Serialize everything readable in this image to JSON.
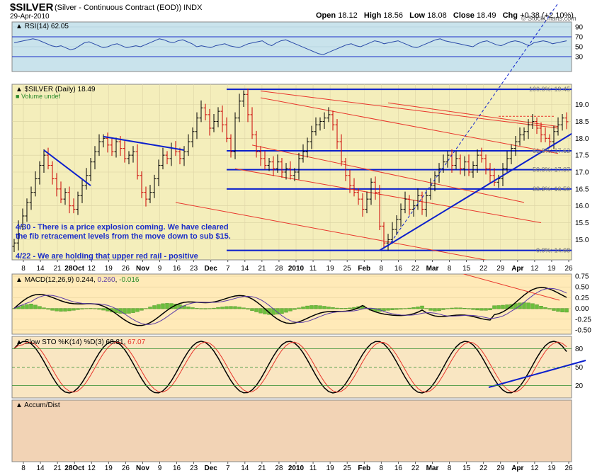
{
  "header": {
    "symbol": "$SILVER",
    "description": "(Silver - Continuous Contract (EOD))",
    "exchange": "INDX",
    "date": "29-Apr-2010",
    "open_label": "Open",
    "open": "18.12",
    "high_label": "High",
    "high": "18.56",
    "low_label": "Low",
    "low": "18.08",
    "close_label": "Close",
    "close": "18.49",
    "chg_label": "Chg",
    "chg": "+0.38 (+2.10%)",
    "watermark": "© StockCharts.com"
  },
  "colors": {
    "price_bg": "#f4eebb",
    "rsi_bg": "#c9e3ec",
    "macd_bg": "#ffeab8",
    "sto_bg": "#f9e6c2",
    "accum_bg": "#f2d3b5",
    "bar_up": "#000000",
    "bar_down": "#cc0000",
    "trend_blue": "#0b1fcc",
    "channel_red": "#e8352b"
  },
  "chart_data": [
    {
      "type": "line",
      "panel": "rsi",
      "label": "RSI(14) 62.05",
      "ylim": [
        0,
        100
      ],
      "ticks": [
        "90",
        "70",
        "50",
        "30"
      ],
      "guides": [
        70,
        30
      ],
      "values": [
        58,
        60,
        62,
        64,
        66,
        64,
        60,
        56,
        52,
        50,
        52,
        48,
        44,
        46,
        52,
        58,
        60,
        56,
        52,
        48,
        50,
        54,
        56,
        52,
        48,
        50,
        52,
        50,
        54,
        58,
        62,
        66,
        64,
        60,
        58,
        62,
        64,
        60,
        56,
        50,
        52,
        50,
        48,
        52,
        54,
        56,
        52,
        50,
        48,
        52,
        56,
        58,
        60,
        62,
        56,
        52,
        58,
        62,
        64,
        60,
        56,
        52,
        48,
        44,
        40,
        36,
        34,
        38,
        42,
        46,
        50,
        54,
        56,
        52,
        50,
        54,
        58,
        62,
        60,
        56,
        58,
        60,
        62,
        58,
        54,
        50,
        48,
        52,
        56,
        60,
        64,
        66,
        62,
        60,
        58,
        56,
        54,
        52,
        50,
        56,
        60,
        62,
        58,
        54,
        52,
        56,
        60,
        62,
        60,
        56,
        52,
        58,
        60,
        62,
        60,
        56,
        58,
        60,
        62
      ]
    },
    {
      "type": "bar",
      "panel": "price",
      "label": "$SILVER (Daily) 18.49",
      "volume_label": "Volume undef",
      "ylim": [
        14.4,
        19.6
      ],
      "y_ticks": [
        "19.0",
        "18.5",
        "18.0",
        "17.5",
        "17.0",
        "16.5",
        "16.0",
        "15.5",
        "15.0"
      ],
      "x_ticks": [
        "8",
        "14",
        "21",
        "28Oct",
        "12",
        "19",
        "26",
        "Nov",
        "9",
        "16",
        "23",
        "Dec",
        "7",
        "14",
        "21",
        "28",
        "2010",
        "11",
        "19",
        "25",
        "Feb",
        "8",
        "16",
        "22",
        "Mar",
        "8",
        "15",
        "22",
        "29",
        "Apr",
        "12",
        "19",
        "26"
      ],
      "closes": [
        14.9,
        15.4,
        15.7,
        16.1,
        16.4,
        16.8,
        17.2,
        17.5,
        17.2,
        16.8,
        16.5,
        16.2,
        16.4,
        16.0,
        15.9,
        16.3,
        16.6,
        16.9,
        17.3,
        17.6,
        17.9,
        18.0,
        17.8,
        17.6,
        17.9,
        17.7,
        17.4,
        17.5,
        17.6,
        16.9,
        16.4,
        16.2,
        16.4,
        16.8,
        17.2,
        17.5,
        17.4,
        17.7,
        17.6,
        17.4,
        17.6,
        17.9,
        18.2,
        18.6,
        18.9,
        18.7,
        18.3,
        18.5,
        18.8,
        18.4,
        18.0,
        17.6,
        18.6,
        19.1,
        19.3,
        18.7,
        18.1,
        17.6,
        17.4,
        17.2,
        17.3,
        17.1,
        17.3,
        17.0,
        17.1,
        16.9,
        17.0,
        17.4,
        17.6,
        17.9,
        18.2,
        18.4,
        18.5,
        18.6,
        18.7,
        18.4,
        17.9,
        17.3,
        16.9,
        16.6,
        16.4,
        16.2,
        15.9,
        16.2,
        16.7,
        16.4,
        15.4,
        14.9,
        15.0,
        15.3,
        15.6,
        15.9,
        16.2,
        15.9,
        16.0,
        16.3,
        15.9,
        16.3,
        16.6,
        16.9,
        17.1,
        17.3,
        17.5,
        17.2,
        17.4,
        17.1,
        17.3,
        17.0,
        17.2,
        17.5,
        17.4,
        17.1,
        16.9,
        16.7,
        16.8,
        17.1,
        17.4,
        17.7,
        17.9,
        18.1,
        18.2,
        18.4,
        18.5,
        18.3,
        18.1,
        18.0,
        17.9,
        18.2,
        18.4,
        18.6,
        18.49
      ],
      "fib_labels": [
        {
          "text": "100.0%: 19.45",
          "value": 19.45
        },
        {
          "text": "61.8%: 17.63",
          "value": 17.63
        },
        {
          "text": "50.0%: 17.07",
          "value": 17.07
        },
        {
          "text": "38.2%: 16.50",
          "value": 16.5
        },
        {
          "text": "0.0%: 14.68",
          "value": 14.68
        }
      ],
      "annotations": [
        "4/30 - There is a price explosion coming.  We have cleared",
        "the fib retracement levels from the move down to sub $15.",
        "4/22 - We are holding that upper red rail - positive"
      ]
    },
    {
      "type": "line",
      "panel": "macd",
      "label_prefix": "MACD(12,26,9)",
      "macd_value": "0.244",
      "signal_value": "0.260",
      "hist_value": "-0.016",
      "ylim": [
        -0.6,
        0.8
      ],
      "ticks": [
        "0.75",
        "0.50",
        "0.25",
        "0.00",
        "-0.25",
        "-0.50"
      ]
    },
    {
      "type": "line",
      "panel": "stochastic",
      "label_prefix": "Slow STO %K(14) %D(3)",
      "k_value": "68.81",
      "d_value": "67.07",
      "ylim": [
        0,
        100
      ],
      "ticks": [
        "80",
        "50",
        "20"
      ]
    },
    {
      "type": "line",
      "panel": "accum",
      "label": "Accum/Dist"
    }
  ]
}
